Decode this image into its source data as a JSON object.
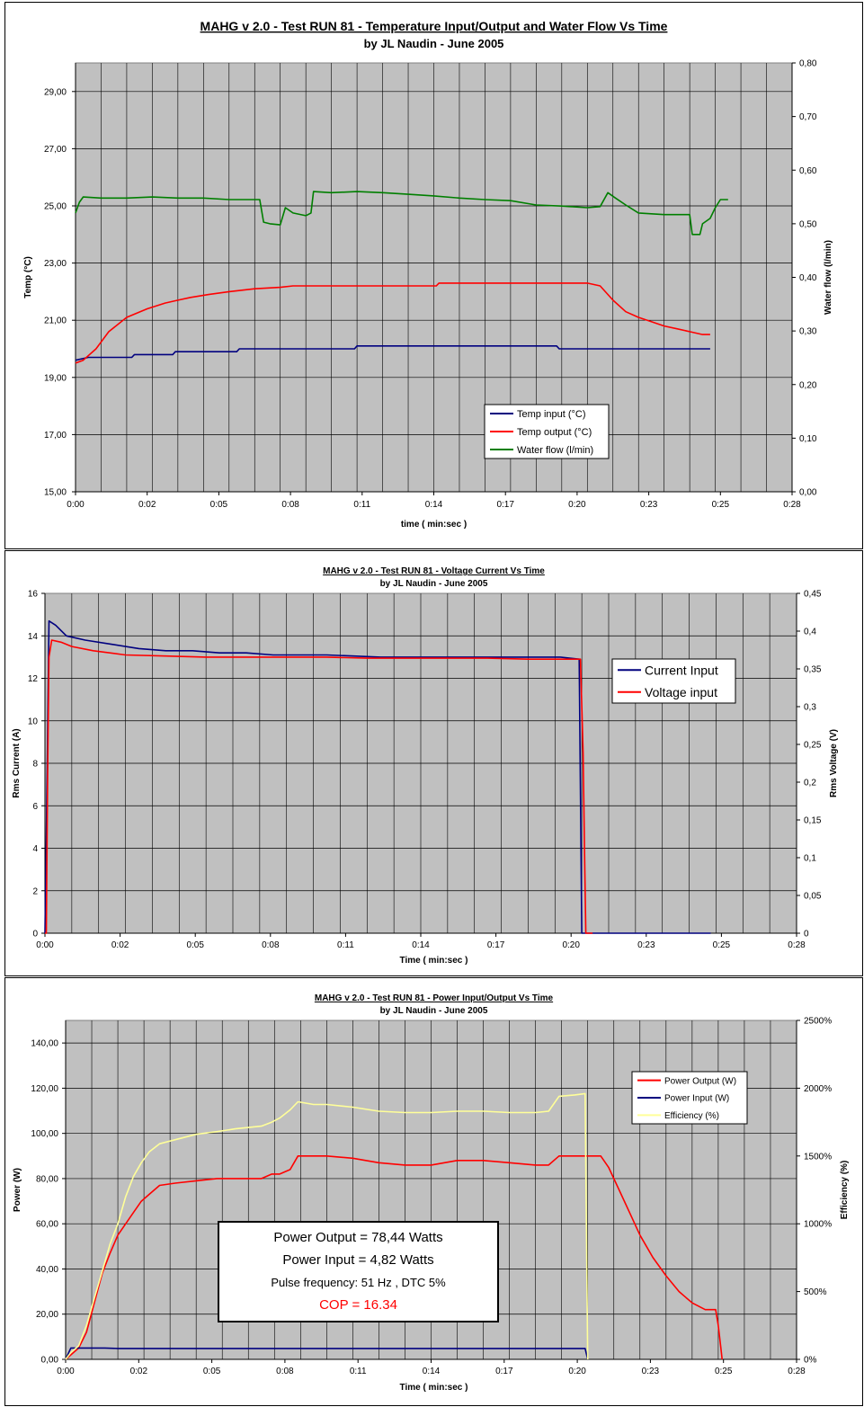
{
  "chart_data": [
    {
      "type": "line",
      "title": "MAHG v 2.0 - Test RUN 81 - Temperature Input/Output and Water Flow Vs Time",
      "subtitle": "by JL Naudin - June 2005",
      "xlabel": "time  ( min:sec )",
      "ylabel": "Temp (°C)",
      "y2label": "Water flow   (l/min)",
      "xlim": [
        0,
        28
      ],
      "ylim": [
        15,
        30
      ],
      "y2lim": [
        0,
        0.8
      ],
      "xticks": [
        "0:00",
        "0:02",
        "0:05",
        "0:08",
        "0:11",
        "0:14",
        "0:17",
        "0:20",
        "0:23",
        "0:25",
        "0:28"
      ],
      "yticks": [
        "15,00",
        "17,00",
        "19,00",
        "21,00",
        "23,00",
        "25,00",
        "27,00",
        "29,00"
      ],
      "y2ticks": [
        "0,00",
        "0,10",
        "0,20",
        "0,30",
        "0,40",
        "0,50",
        "0,60",
        "0,70",
        "0,80"
      ],
      "grid": true,
      "legend_position": "bottom-center",
      "series": [
        {
          "name": "Temp input (°C)",
          "axis": "left",
          "color": "#00007f",
          "points": [
            [
              0,
              19.6
            ],
            [
              0.5,
              19.7
            ],
            [
              2.2,
              19.7
            ],
            [
              2.3,
              19.8
            ],
            [
              3.8,
              19.8
            ],
            [
              3.9,
              19.9
            ],
            [
              6.3,
              19.9
            ],
            [
              6.4,
              20.0
            ],
            [
              10.9,
              20.0
            ],
            [
              11.0,
              20.1
            ],
            [
              18.8,
              20.1
            ],
            [
              18.9,
              20.0
            ],
            [
              24.8,
              20.0
            ]
          ]
        },
        {
          "name": "Temp output (°C)",
          "axis": "left",
          "color": "#ff0000",
          "points": [
            [
              0,
              19.5
            ],
            [
              0.3,
              19.6
            ],
            [
              0.8,
              20.0
            ],
            [
              1.3,
              20.6
            ],
            [
              2.0,
              21.1
            ],
            [
              2.8,
              21.4
            ],
            [
              3.5,
              21.6
            ],
            [
              4.0,
              21.7
            ],
            [
              4.5,
              21.8
            ],
            [
              5.2,
              21.9
            ],
            [
              6.0,
              22.0
            ],
            [
              7.0,
              22.1
            ],
            [
              8.0,
              22.15
            ],
            [
              8.5,
              22.2
            ],
            [
              9.3,
              22.2
            ],
            [
              14.1,
              22.2
            ],
            [
              14.2,
              22.3
            ],
            [
              19.4,
              22.3
            ],
            [
              20.0,
              22.3
            ],
            [
              20.5,
              22.2
            ],
            [
              21.0,
              21.7
            ],
            [
              21.5,
              21.3
            ],
            [
              22.0,
              21.1
            ],
            [
              22.5,
              20.95
            ],
            [
              23.0,
              20.8
            ],
            [
              23.5,
              20.7
            ],
            [
              24.0,
              20.6
            ],
            [
              24.5,
              20.5
            ],
            [
              24.8,
              20.5
            ]
          ]
        },
        {
          "name": "Water flow (l/min)",
          "axis": "right",
          "color": "#007f00",
          "points": [
            [
              0,
              0.52
            ],
            [
              0.15,
              0.54
            ],
            [
              0.3,
              0.55
            ],
            [
              1.0,
              0.548
            ],
            [
              2.0,
              0.548
            ],
            [
              3.0,
              0.55
            ],
            [
              4.0,
              0.548
            ],
            [
              5.0,
              0.548
            ],
            [
              6.0,
              0.545
            ],
            [
              7.2,
              0.545
            ],
            [
              7.35,
              0.503
            ],
            [
              7.6,
              0.5
            ],
            [
              8.0,
              0.498
            ],
            [
              8.2,
              0.53
            ],
            [
              8.5,
              0.52
            ],
            [
              9.0,
              0.515
            ],
            [
              9.2,
              0.52
            ],
            [
              9.3,
              0.56
            ],
            [
              10.0,
              0.558
            ],
            [
              11.0,
              0.56
            ],
            [
              12.0,
              0.558
            ],
            [
              13.0,
              0.555
            ],
            [
              14.0,
              0.552
            ],
            [
              15.0,
              0.548
            ],
            [
              16.0,
              0.545
            ],
            [
              17.0,
              0.543
            ],
            [
              18.0,
              0.535
            ],
            [
              19.0,
              0.533
            ],
            [
              20.0,
              0.53
            ],
            [
              20.5,
              0.532
            ],
            [
              20.8,
              0.558
            ],
            [
              21.1,
              0.548
            ],
            [
              21.5,
              0.535
            ],
            [
              22.0,
              0.52
            ],
            [
              23.0,
              0.517
            ],
            [
              24.0,
              0.517
            ],
            [
              24.1,
              0.48
            ],
            [
              24.4,
              0.48
            ],
            [
              24.5,
              0.5
            ],
            [
              24.8,
              0.51
            ],
            [
              25.0,
              0.53
            ],
            [
              25.2,
              0.545
            ],
            [
              25.5,
              0.545
            ]
          ]
        }
      ]
    },
    {
      "type": "line",
      "title": "MAHG v 2.0 - Test RUN 81 - Voltage Current Vs Time",
      "subtitle": "by JL Naudin - June 2005",
      "xlabel": "Time  ( min:sec )",
      "ylabel": "Rms Current (A)",
      "y2label": "Rms Voltage (V)",
      "xlim": [
        0,
        28
      ],
      "ylim": [
        0,
        16
      ],
      "y2lim": [
        0,
        0.45
      ],
      "xticks": [
        "0:00",
        "0:02",
        "0:05",
        "0:08",
        "0:11",
        "0:14",
        "0:17",
        "0:20",
        "0:23",
        "0:25",
        "0:28"
      ],
      "yticks": [
        "0",
        "2",
        "4",
        "6",
        "8",
        "10",
        "12",
        "14",
        "16"
      ],
      "y2ticks": [
        "0",
        "0,05",
        "0,1",
        "0,15",
        "0,2",
        "0,25",
        "0,3",
        "0,35",
        "0,4",
        "0,45"
      ],
      "grid": true,
      "legend_position": "top-right",
      "series": [
        {
          "name": "Current Input",
          "axis": "left",
          "color": "#00007f",
          "points": [
            [
              0,
              0
            ],
            [
              0.05,
              4.5
            ],
            [
              0.1,
              9.5
            ],
            [
              0.15,
              14.7
            ],
            [
              0.4,
              14.5
            ],
            [
              0.8,
              14.0
            ],
            [
              1.5,
              13.8
            ],
            [
              2.5,
              13.6
            ],
            [
              3.5,
              13.4
            ],
            [
              4.5,
              13.3
            ],
            [
              5.5,
              13.3
            ],
            [
              6.5,
              13.2
            ],
            [
              7.5,
              13.2
            ],
            [
              8.5,
              13.1
            ],
            [
              9.5,
              13.1
            ],
            [
              10.5,
              13.1
            ],
            [
              11.5,
              13.05
            ],
            [
              12.5,
              13.0
            ],
            [
              13.5,
              13.0
            ],
            [
              14.5,
              13.0
            ],
            [
              15.5,
              13.0
            ],
            [
              16.5,
              13.0
            ],
            [
              17.5,
              13.0
            ],
            [
              18.5,
              13.0
            ],
            [
              19.2,
              13.0
            ],
            [
              19.9,
              12.9
            ],
            [
              20.0,
              0
            ],
            [
              24.8,
              0
            ]
          ]
        },
        {
          "name": "Voltage input",
          "axis": "left",
          "color": "#ff0000",
          "points": [
            [
              0,
              0
            ],
            [
              0.05,
              0
            ],
            [
              0.1,
              7.5
            ],
            [
              0.15,
              13.0
            ],
            [
              0.25,
              13.8
            ],
            [
              0.6,
              13.7
            ],
            [
              1.0,
              13.5
            ],
            [
              1.8,
              13.3
            ],
            [
              3.0,
              13.1
            ],
            [
              4.5,
              13.05
            ],
            [
              6.0,
              13.0
            ],
            [
              7.5,
              13.0
            ],
            [
              9.0,
              13.0
            ],
            [
              10.5,
              13.0
            ],
            [
              12.0,
              12.95
            ],
            [
              13.5,
              12.95
            ],
            [
              15.0,
              12.95
            ],
            [
              16.5,
              12.95
            ],
            [
              18.0,
              12.9
            ],
            [
              19.5,
              12.9
            ],
            [
              19.95,
              12.9
            ],
            [
              20.05,
              8.5
            ],
            [
              20.1,
              4.0
            ],
            [
              20.15,
              0
            ],
            [
              20.4,
              0
            ]
          ]
        }
      ]
    },
    {
      "type": "line",
      "title": "MAHG v 2.0 - Test RUN 81 - Power Input/Output Vs Time",
      "subtitle": "by JL Naudin - June 2005",
      "xlabel": "Time  ( min:sec )",
      "ylabel": "Power (W)",
      "y2label": "Efficiency (%)",
      "xlim": [
        0,
        28
      ],
      "ylim": [
        0,
        150
      ],
      "y2lim": [
        0,
        2500
      ],
      "xticks": [
        "0:00",
        "0:02",
        "0:05",
        "0:08",
        "0:11",
        "0:14",
        "0:17",
        "0:20",
        "0:23",
        "0:25",
        "0:28"
      ],
      "yticks": [
        "0,00",
        "20,00",
        "40,00",
        "60,00",
        "80,00",
        "100,00",
        "120,00",
        "140,00"
      ],
      "y2ticks": [
        "0%",
        "500%",
        "1000%",
        "1500%",
        "2000%",
        "2500%"
      ],
      "grid": true,
      "legend_position": "top-right",
      "series": [
        {
          "name": "Power Output (W)",
          "axis": "left",
          "color": "#ff0000",
          "points": [
            [
              0,
              0
            ],
            [
              0.2,
              2
            ],
            [
              0.5,
              5
            ],
            [
              0.8,
              12
            ],
            [
              1.1,
              25
            ],
            [
              1.4,
              38
            ],
            [
              1.7,
              47
            ],
            [
              2.0,
              55
            ],
            [
              2.3,
              60
            ],
            [
              2.6,
              65
            ],
            [
              2.9,
              70
            ],
            [
              3.2,
              73
            ],
            [
              3.6,
              77
            ],
            [
              4.2,
              78
            ],
            [
              5.0,
              79
            ],
            [
              5.8,
              80
            ],
            [
              6.5,
              80
            ],
            [
              7.5,
              80
            ],
            [
              7.9,
              82
            ],
            [
              8.2,
              82
            ],
            [
              8.6,
              84
            ],
            [
              8.9,
              90
            ],
            [
              9.5,
              90
            ],
            [
              10.0,
              90
            ],
            [
              11.0,
              89
            ],
            [
              12.0,
              87
            ],
            [
              13.0,
              86
            ],
            [
              14.0,
              86
            ],
            [
              15.0,
              88
            ],
            [
              16.0,
              88
            ],
            [
              17.0,
              87
            ],
            [
              18.0,
              86
            ],
            [
              18.5,
              86
            ],
            [
              18.9,
              90
            ],
            [
              19.5,
              90
            ],
            [
              20.0,
              90
            ],
            [
              20.5,
              90
            ],
            [
              20.8,
              85
            ],
            [
              21.2,
              75
            ],
            [
              21.6,
              65
            ],
            [
              22.0,
              55
            ],
            [
              22.5,
              45
            ],
            [
              23.0,
              37
            ],
            [
              23.5,
              30
            ],
            [
              24.0,
              25
            ],
            [
              24.5,
              22
            ],
            [
              24.9,
              22
            ],
            [
              25.0,
              15
            ],
            [
              25.1,
              5
            ],
            [
              25.15,
              0
            ]
          ]
        },
        {
          "name": "Power Input (W)",
          "axis": "left",
          "color": "#00007f",
          "points": [
            [
              0,
              0
            ],
            [
              0.2,
              5
            ],
            [
              1.5,
              5
            ],
            [
              2.0,
              4.8
            ],
            [
              10.0,
              4.8
            ],
            [
              19.9,
              4.8
            ],
            [
              20.0,
              0
            ]
          ]
        },
        {
          "name": "Efficiency (%)",
          "axis": "right",
          "color": "#ffff99",
          "points": [
            [
              0,
              0
            ],
            [
              0.2,
              50
            ],
            [
              0.5,
              100
            ],
            [
              0.8,
              250
            ],
            [
              1.1,
              450
            ],
            [
              1.4,
              650
            ],
            [
              1.7,
              850
            ],
            [
              2.0,
              1000
            ],
            [
              2.3,
              1200
            ],
            [
              2.6,
              1350
            ],
            [
              2.9,
              1450
            ],
            [
              3.2,
              1530
            ],
            [
              3.6,
              1590
            ],
            [
              4.2,
              1620
            ],
            [
              5.0,
              1660
            ],
            [
              5.8,
              1680
            ],
            [
              6.5,
              1700
            ],
            [
              7.5,
              1720
            ],
            [
              7.9,
              1750
            ],
            [
              8.2,
              1780
            ],
            [
              8.6,
              1840
            ],
            [
              8.9,
              1900
            ],
            [
              9.5,
              1880
            ],
            [
              10.0,
              1880
            ],
            [
              11.0,
              1860
            ],
            [
              12.0,
              1830
            ],
            [
              13.0,
              1820
            ],
            [
              14.0,
              1820
            ],
            [
              15.0,
              1830
            ],
            [
              16.0,
              1830
            ],
            [
              17.0,
              1820
            ],
            [
              18.0,
              1820
            ],
            [
              18.5,
              1830
            ],
            [
              18.9,
              1940
            ],
            [
              19.5,
              1950
            ],
            [
              19.9,
              1960
            ],
            [
              20.0,
              0
            ]
          ]
        }
      ]
    }
  ],
  "annotation": {
    "line1": "Power Output = 78,44 Watts",
    "line2": "Power Input = 4,82 Watts",
    "line3": "Pulse frequency: 51 Hz  ,  DTC 5%",
    "line4": "COP =  16.34"
  }
}
